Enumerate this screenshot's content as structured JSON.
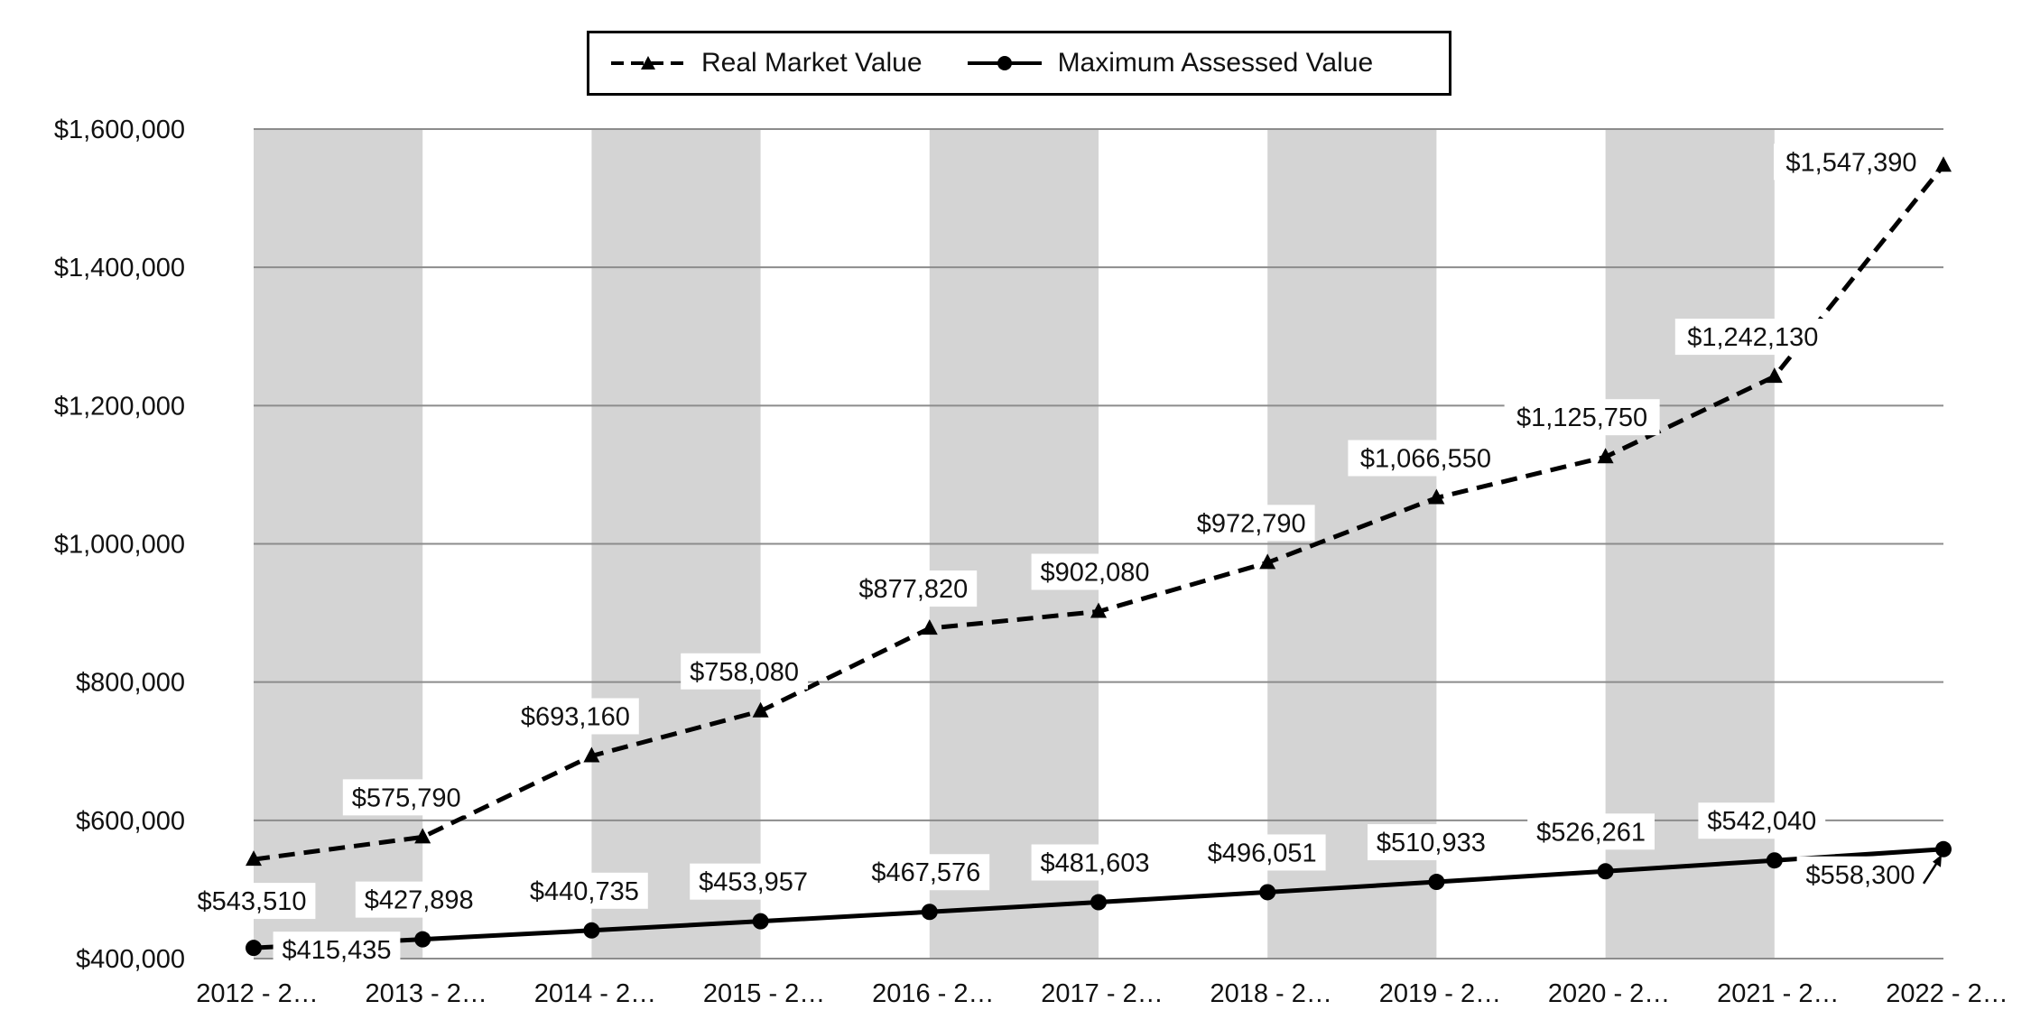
{
  "chart_data": {
    "type": "line",
    "title": "",
    "xlabel": "",
    "ylabel": "",
    "categories": [
      "2012 - 2…",
      "2013 - 2…",
      "2014 - 2…",
      "2015 - 2…",
      "2016 - 2…",
      "2017 - 2…",
      "2018 - 2…",
      "2019 - 2…",
      "2020 - 2…",
      "2021 - 2…",
      "2022 - 2…"
    ],
    "ylim": [
      400000,
      1600000
    ],
    "yticks": [
      400000,
      600000,
      800000,
      1000000,
      1200000,
      1400000,
      1600000
    ],
    "ytick_labels": [
      "$400,000",
      "$600,000",
      "$800,000",
      "$1,000,000",
      "$1,200,000",
      "$1,400,000",
      "$1,600,000"
    ],
    "grid": true,
    "legend_position": "top-center",
    "series": [
      {
        "name": "Real Market Value",
        "style": "dashed",
        "marker": "triangle",
        "color": "#000000",
        "values": [
          543510,
          575790,
          693160,
          758080,
          877820,
          902080,
          972790,
          1066550,
          1125750,
          1242130,
          1547390
        ],
        "labels": [
          "$543,510",
          "$575,790",
          "$693,160",
          "$758,080",
          "$877,820",
          "$902,080",
          "$972,790",
          "$1,066,550",
          "$1,125,750",
          "$1,242,130",
          "$1,547,390"
        ]
      },
      {
        "name": "Maximum Assessed Value",
        "style": "solid",
        "marker": "circle",
        "color": "#000000",
        "values": [
          415435,
          427898,
          440735,
          453957,
          467576,
          481603,
          496051,
          510933,
          526261,
          542040,
          558300
        ],
        "labels": [
          "$415,435",
          "$427,898",
          "$440,735",
          "$453,957",
          "$467,576",
          "$481,603",
          "$496,051",
          "$510,933",
          "$526,261",
          "$542,040",
          "$558,300"
        ]
      }
    ],
    "band_color": "#d4d4d4",
    "grid_color": "#8c8c8c"
  }
}
